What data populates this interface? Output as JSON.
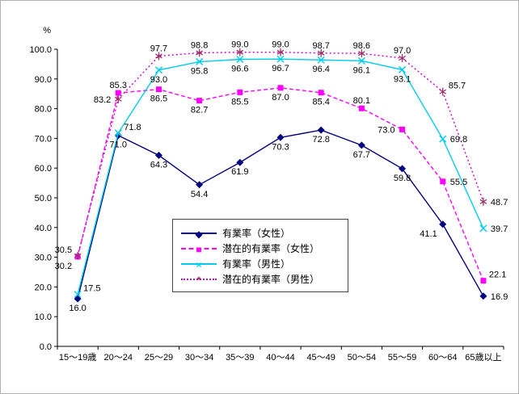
{
  "figure": {
    "background": "#ffffff",
    "border_color": "#b0b0b0"
  },
  "chart_data": {
    "type": "line",
    "title": "",
    "xlabel": "",
    "ylabel": "%",
    "ylim": [
      0,
      100
    ],
    "y_tick_step": 10,
    "y_tick_labels": [
      "0.0",
      "10.0",
      "20.0",
      "30.0",
      "40.0",
      "50.0",
      "60.0",
      "70.0",
      "80.0",
      "90.0",
      "100.0"
    ],
    "grid": false,
    "legend_position": "center-inside",
    "categories": [
      "15～19歳",
      "20～24",
      "25～29",
      "30～34",
      "35～39",
      "40～44",
      "45～49",
      "50～54",
      "55～59",
      "60～64",
      "65歳以上"
    ],
    "series": [
      {
        "name": "有業率（女性）",
        "values": [
          16.0,
          71.0,
          64.3,
          54.4,
          61.9,
          70.3,
          72.8,
          67.7,
          59.8,
          41.1,
          16.9
        ],
        "color": "#000080",
        "marker": "diamond",
        "line": "solid",
        "label_pos": [
          "below",
          "below",
          "below",
          "below",
          "below",
          "below",
          "below",
          "below",
          "below",
          "below-left",
          "right"
        ]
      },
      {
        "name": "潜在的有業率（女性）",
        "values": [
          30.2,
          85.3,
          86.5,
          82.7,
          85.5,
          87.0,
          85.4,
          80.1,
          73.0,
          55.5,
          22.1
        ],
        "color": "#FF00FF",
        "marker": "square",
        "line": "dashed",
        "label_pos": [
          "below-left",
          "above",
          "below",
          "below",
          "below",
          "below",
          "below",
          "above",
          "left",
          "right",
          "above-right"
        ]
      },
      {
        "name": "有業率（男性）",
        "values": [
          17.5,
          71.8,
          93.0,
          95.8,
          96.6,
          96.7,
          96.4,
          96.1,
          93.1,
          69.8,
          39.7
        ],
        "color": "#00CCEE",
        "marker": "x",
        "line": "solid",
        "label_pos": [
          "above-right",
          "above-right",
          "below",
          "below",
          "below",
          "below",
          "below",
          "below",
          "below",
          "right",
          "right"
        ]
      },
      {
        "name": "潜在的有業率（男性）",
        "values": [
          30.5,
          83.2,
          97.7,
          98.8,
          99.0,
          99.0,
          98.7,
          98.6,
          97.0,
          85.7,
          48.7
        ],
        "color": "#CC00CC",
        "marker": "asterisk",
        "marker_color": "#993366",
        "line": "dotted",
        "label_pos": [
          "above-left",
          "left",
          "above",
          "above",
          "above",
          "above",
          "above",
          "above",
          "above",
          "above-right",
          "right"
        ]
      }
    ]
  }
}
